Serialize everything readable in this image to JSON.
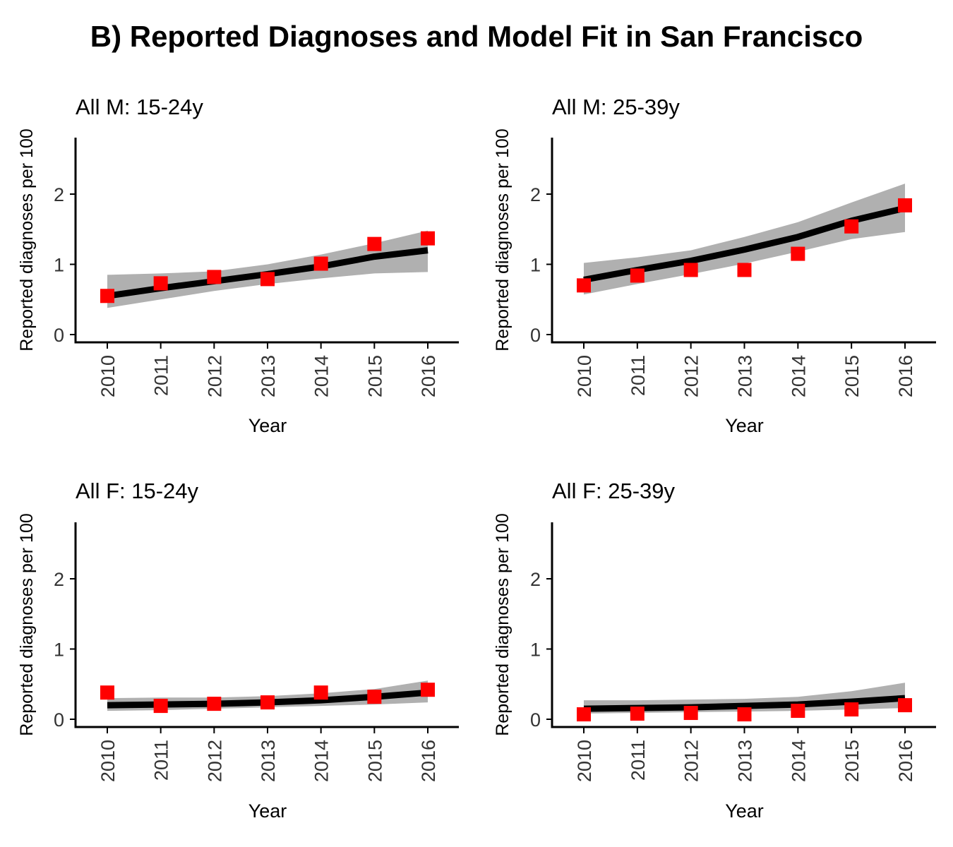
{
  "title": "B) Reported Diagnoses and Model Fit in San Francisco",
  "colors": {
    "observed": "#ff0000",
    "fit": "#000000",
    "band": "#b0b0b0",
    "axis": "#000000"
  },
  "chart_data": [
    {
      "type": "line",
      "title": "All M: 15-24y",
      "xlabel": "Year",
      "ylabel": "Reported diagnoses per 100",
      "x": [
        2010,
        2011,
        2012,
        2013,
        2014,
        2015,
        2016
      ],
      "ylim": [
        0,
        2.8
      ],
      "yticks": [
        0,
        1,
        2
      ],
      "grid": false,
      "series": [
        {
          "values": [
            0.55,
            0.66,
            0.76,
            0.86,
            0.97,
            1.11,
            1.2
          ]
        },
        {
          "values": [
            0.55,
            0.73,
            0.82,
            0.79,
            1.01,
            1.29,
            1.37
          ]
        }
      ],
      "band": {
        "lower": [
          0.38,
          0.5,
          0.62,
          0.72,
          0.8,
          0.87,
          0.89
        ],
        "upper": [
          0.85,
          0.87,
          0.9,
          1.0,
          1.14,
          1.3,
          1.48
        ]
      }
    },
    {
      "type": "line",
      "title": "All M: 25-39y",
      "xlabel": "Year",
      "ylabel": "Reported diagnoses per 100",
      "x": [
        2010,
        2011,
        2012,
        2013,
        2014,
        2015,
        2016
      ],
      "ylim": [
        0,
        2.8
      ],
      "yticks": [
        0,
        1,
        2
      ],
      "grid": false,
      "series": [
        {
          "values": [
            0.78,
            0.92,
            1.05,
            1.21,
            1.39,
            1.62,
            1.8
          ]
        },
        {
          "values": [
            0.7,
            0.84,
            0.92,
            0.92,
            1.15,
            1.54,
            1.84
          ]
        }
      ],
      "band": {
        "lower": [
          0.57,
          0.72,
          0.86,
          1.01,
          1.18,
          1.36,
          1.46
        ],
        "upper": [
          1.02,
          1.1,
          1.2,
          1.39,
          1.6,
          1.88,
          2.15
        ]
      }
    },
    {
      "type": "line",
      "title": "All F: 15-24y",
      "xlabel": "Year",
      "ylabel": "Reported diagnoses per 100",
      "x": [
        2010,
        2011,
        2012,
        2013,
        2014,
        2015,
        2016
      ],
      "ylim": [
        0,
        2.8
      ],
      "yticks": [
        0,
        1,
        2
      ],
      "grid": false,
      "series": [
        {
          "values": [
            0.2,
            0.21,
            0.22,
            0.24,
            0.27,
            0.32,
            0.38
          ]
        },
        {
          "values": [
            0.38,
            0.19,
            0.22,
            0.24,
            0.38,
            0.32,
            0.42
          ]
        }
      ],
      "band": {
        "lower": [
          0.12,
          0.13,
          0.15,
          0.17,
          0.19,
          0.21,
          0.24
        ],
        "upper": [
          0.3,
          0.31,
          0.31,
          0.33,
          0.37,
          0.43,
          0.55
        ]
      }
    },
    {
      "type": "line",
      "title": "All F: 25-39y",
      "xlabel": "Year",
      "ylabel": "Reported diagnoses per 100",
      "x": [
        2010,
        2011,
        2012,
        2013,
        2014,
        2015,
        2016
      ],
      "ylim": [
        0,
        2.8
      ],
      "yticks": [
        0,
        1,
        2
      ],
      "grid": false,
      "series": [
        {
          "values": [
            0.15,
            0.16,
            0.17,
            0.19,
            0.21,
            0.25,
            0.3
          ]
        },
        {
          "values": [
            0.07,
            0.08,
            0.09,
            0.07,
            0.12,
            0.14,
            0.2
          ]
        }
      ],
      "band": {
        "lower": [
          0.08,
          0.09,
          0.1,
          0.11,
          0.12,
          0.14,
          0.16
        ],
        "upper": [
          0.27,
          0.27,
          0.28,
          0.29,
          0.32,
          0.4,
          0.52
        ]
      }
    }
  ]
}
